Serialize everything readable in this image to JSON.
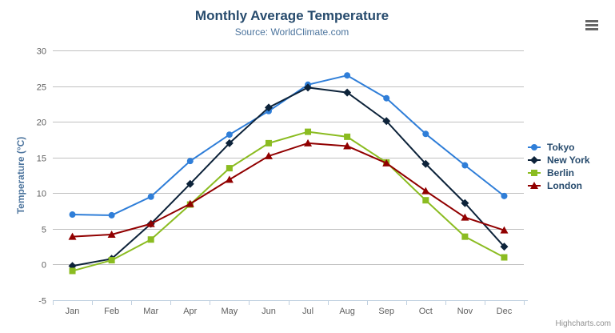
{
  "chart_data": {
    "type": "line",
    "title": "Monthly Average Temperature",
    "subtitle": "Source: WorldClimate.com",
    "xlabel": "",
    "ylabel": "Temperature (°C)",
    "categories": [
      "Jan",
      "Feb",
      "Mar",
      "Apr",
      "May",
      "Jun",
      "Jul",
      "Aug",
      "Sep",
      "Oct",
      "Nov",
      "Dec"
    ],
    "series": [
      {
        "name": "Tokyo",
        "color": "#2f7ed8",
        "marker": "circle",
        "values": [
          7.0,
          6.9,
          9.5,
          14.5,
          18.2,
          21.5,
          25.2,
          26.5,
          23.3,
          18.3,
          13.9,
          9.6
        ]
      },
      {
        "name": "New York",
        "color": "#0d233a",
        "marker": "diamond",
        "values": [
          -0.2,
          0.8,
          5.7,
          11.3,
          17.0,
          22.0,
          24.8,
          24.1,
          20.1,
          14.1,
          8.6,
          2.5
        ]
      },
      {
        "name": "Berlin",
        "color": "#8bbc21",
        "marker": "square",
        "values": [
          -0.9,
          0.6,
          3.5,
          8.4,
          13.5,
          17.0,
          18.6,
          17.9,
          14.3,
          9.0,
          3.9,
          1.0
        ]
      },
      {
        "name": "London",
        "color": "#910000",
        "marker": "triangle",
        "values": [
          3.9,
          4.2,
          5.7,
          8.5,
          11.9,
          15.2,
          17.0,
          16.6,
          14.2,
          10.3,
          6.6,
          4.8
        ]
      }
    ],
    "ylim": [
      -5,
      30
    ],
    "ytick_interval": 5,
    "grid": true,
    "legend_position": "right",
    "grid_color": "#c0c0c0",
    "axis_line_color": "#c0d0e0",
    "axis_label_color": "#606060"
  },
  "credits": {
    "text": "Highcharts.com"
  },
  "context_menu": {
    "icon": "hamburger-icon"
  }
}
